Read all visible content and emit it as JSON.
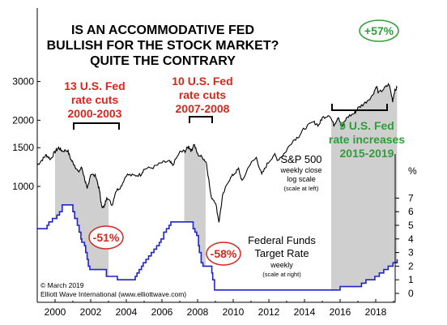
{
  "chart_data": {
    "type": "line",
    "title_lines": [
      "IS AN ACCOMMODATIVE FED",
      "BULLISH FOR THE STOCK MARKET?",
      "QUITE THE CONTRARY"
    ],
    "x_ticks": [
      "2000",
      "2002",
      "2004",
      "2006",
      "2008",
      "2010",
      "2012",
      "2014",
      "2016",
      "2018"
    ],
    "left_axis": {
      "scale": "log",
      "ticks": [
        "1000",
        "1500",
        "2000",
        "3000"
      ]
    },
    "right_axis": {
      "unit": "%",
      "ticks": [
        "0",
        "1",
        "2",
        "3",
        "4",
        "5",
        "6",
        "7"
      ]
    },
    "grid": false,
    "series": [
      {
        "name": "S&P 500",
        "subtitle": "weekly close",
        "subtitle2": "log scale",
        "axis_note": "(scale at left)",
        "color": "#000000",
        "points": [
          [
            1999.0,
            1250
          ],
          [
            1999.3,
            1330
          ],
          [
            1999.5,
            1390
          ],
          [
            1999.75,
            1330
          ],
          [
            2000.0,
            1440
          ],
          [
            2000.2,
            1500
          ],
          [
            2000.4,
            1450
          ],
          [
            2000.7,
            1460
          ],
          [
            2000.9,
            1320
          ],
          [
            2001.1,
            1250
          ],
          [
            2001.3,
            1160
          ],
          [
            2001.5,
            1220
          ],
          [
            2001.7,
            1050
          ],
          [
            2001.8,
            970
          ],
          [
            2002.0,
            1140
          ],
          [
            2002.3,
            1110
          ],
          [
            2002.5,
            950
          ],
          [
            2002.6,
            820
          ],
          [
            2002.75,
            800
          ],
          [
            2002.9,
            900
          ],
          [
            2003.2,
            820
          ],
          [
            2003.4,
            950
          ],
          [
            2003.7,
            1000
          ],
          [
            2004.0,
            1130
          ],
          [
            2004.4,
            1120
          ],
          [
            2004.8,
            1130
          ],
          [
            2005.0,
            1200
          ],
          [
            2005.5,
            1220
          ],
          [
            2006.0,
            1280
          ],
          [
            2006.4,
            1300
          ],
          [
            2006.6,
            1250
          ],
          [
            2007.0,
            1430
          ],
          [
            2007.3,
            1450
          ],
          [
            2007.5,
            1520
          ],
          [
            2007.65,
            1450
          ],
          [
            2007.8,
            1560
          ],
          [
            2008.0,
            1400
          ],
          [
            2008.3,
            1350
          ],
          [
            2008.5,
            1280
          ],
          [
            2008.75,
            900
          ],
          [
            2009.0,
            850
          ],
          [
            2009.2,
            690
          ],
          [
            2009.4,
            900
          ],
          [
            2009.7,
            1050
          ],
          [
            2010.0,
            1130
          ],
          [
            2010.3,
            1200
          ],
          [
            2010.5,
            1050
          ],
          [
            2010.9,
            1250
          ],
          [
            2011.3,
            1350
          ],
          [
            2011.6,
            1130
          ],
          [
            2011.9,
            1260
          ],
          [
            2012.3,
            1400
          ],
          [
            2012.5,
            1320
          ],
          [
            2012.9,
            1420
          ],
          [
            2013.3,
            1600
          ],
          [
            2013.7,
            1700
          ],
          [
            2014.0,
            1840
          ],
          [
            2014.5,
            1960
          ],
          [
            2014.8,
            1900
          ],
          [
            2015.0,
            2050
          ],
          [
            2015.4,
            2120
          ],
          [
            2015.65,
            1900
          ],
          [
            2015.9,
            2080
          ],
          [
            2016.1,
            1870
          ],
          [
            2016.4,
            2070
          ],
          [
            2016.8,
            2150
          ],
          [
            2017.0,
            2270
          ],
          [
            2017.4,
            2400
          ],
          [
            2017.8,
            2580
          ],
          [
            2018.05,
            2870
          ],
          [
            2018.15,
            2650
          ],
          [
            2018.5,
            2800
          ],
          [
            2018.75,
            2920
          ],
          [
            2018.95,
            2450
          ],
          [
            2019.05,
            2700
          ],
          [
            2019.2,
            2820
          ]
        ]
      },
      {
        "name": "Federal Funds",
        "name2": "Target Rate",
        "subtitle": "weekly",
        "axis_note": "(scale at right)",
        "color": "#1f24c8",
        "points": [
          [
            1999.0,
            4.75
          ],
          [
            1999.5,
            4.75
          ],
          [
            1999.55,
            5.0
          ],
          [
            1999.65,
            5.25
          ],
          [
            1999.85,
            5.5
          ],
          [
            2000.1,
            5.75
          ],
          [
            2000.25,
            6.0
          ],
          [
            2000.4,
            6.5
          ],
          [
            2000.95,
            6.5
          ],
          [
            2001.0,
            6.0
          ],
          [
            2001.1,
            5.5
          ],
          [
            2001.25,
            5.0
          ],
          [
            2001.35,
            4.5
          ],
          [
            2001.45,
            4.0
          ],
          [
            2001.5,
            3.75
          ],
          [
            2001.65,
            3.5
          ],
          [
            2001.72,
            3.0
          ],
          [
            2001.8,
            2.5
          ],
          [
            2001.87,
            2.0
          ],
          [
            2001.95,
            1.75
          ],
          [
            2002.85,
            1.75
          ],
          [
            2002.88,
            1.25
          ],
          [
            2003.45,
            1.25
          ],
          [
            2003.5,
            1.0
          ],
          [
            2004.45,
            1.0
          ],
          [
            2004.5,
            1.25
          ],
          [
            2004.6,
            1.5
          ],
          [
            2004.72,
            1.75
          ],
          [
            2004.85,
            2.0
          ],
          [
            2004.95,
            2.25
          ],
          [
            2005.1,
            2.5
          ],
          [
            2005.25,
            2.75
          ],
          [
            2005.4,
            3.0
          ],
          [
            2005.55,
            3.25
          ],
          [
            2005.7,
            3.5
          ],
          [
            2005.85,
            3.75
          ],
          [
            2005.95,
            4.0
          ],
          [
            2006.1,
            4.5
          ],
          [
            2006.25,
            4.75
          ],
          [
            2006.4,
            5.0
          ],
          [
            2006.5,
            5.25
          ],
          [
            2007.7,
            5.25
          ],
          [
            2007.75,
            4.75
          ],
          [
            2007.85,
            4.5
          ],
          [
            2007.95,
            4.25
          ],
          [
            2008.05,
            3.5
          ],
          [
            2008.1,
            3.0
          ],
          [
            2008.2,
            2.25
          ],
          [
            2008.3,
            2.0
          ],
          [
            2008.75,
            2.0
          ],
          [
            2008.8,
            1.5
          ],
          [
            2008.85,
            1.0
          ],
          [
            2008.95,
            0.25
          ],
          [
            2015.95,
            0.25
          ],
          [
            2016.0,
            0.5
          ],
          [
            2016.95,
            0.5
          ],
          [
            2017.2,
            0.75
          ],
          [
            2017.45,
            1.0
          ],
          [
            2017.95,
            1.25
          ],
          [
            2018.2,
            1.5
          ],
          [
            2018.45,
            1.75
          ],
          [
            2018.7,
            2.0
          ],
          [
            2018.97,
            2.25
          ],
          [
            2019.2,
            2.5
          ]
        ]
      }
    ],
    "shaded_periods": [
      [
        2000.0,
        2003.0
      ],
      [
        2007.25,
        2008.45
      ],
      [
        2015.5,
        2019.2
      ]
    ],
    "annotations": {
      "cuts_2000": [
        "13 U.S. Fed",
        "rate cuts",
        "2000-2003"
      ],
      "cuts_2007": [
        "10 U.S. Fed",
        "rate cuts",
        "2007-2008"
      ],
      "hikes_2015": [
        "9 U.S. Fed",
        "rate increases",
        "2015-2019"
      ],
      "drop_2002": "-51%",
      "drop_2009": "-58%",
      "gain_2019": "+57%"
    },
    "credit_lines": [
      "© March 2019",
      "Elliott Wave International (www.elliottwave.com)"
    ]
  }
}
